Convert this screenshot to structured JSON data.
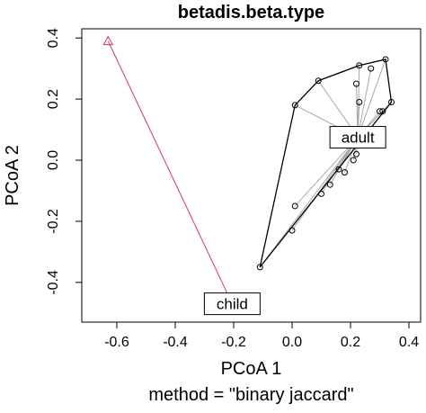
{
  "chart_data": {
    "type": "scatter",
    "title": "betadis.beta.type",
    "xlabel": "PCoA 1",
    "ylabel": "PCoA 2",
    "subtitle": "method = \"binary jaccard\"",
    "xlim": [
      -0.72,
      0.44
    ],
    "ylim": [
      -0.53,
      0.43
    ],
    "xticks": [
      -0.6,
      -0.4,
      -0.2,
      0.0,
      0.2,
      0.4
    ],
    "xtick_labels": [
      "-0.6",
      "-0.4",
      "-0.2",
      "0.0",
      "0.2",
      "0.4"
    ],
    "yticks": [
      -0.4,
      -0.2,
      0.0,
      0.2,
      0.4
    ],
    "ytick_labels": [
      "-0.4",
      "-0.2",
      "0.0",
      "0.2",
      "0.4"
    ],
    "grid": false,
    "groups": [
      {
        "name": "adult",
        "color": "#000000",
        "marker": "circle",
        "centroid": [
          0.225,
          0.075
        ],
        "points": [
          [
            -0.11,
            -0.35
          ],
          [
            0.0,
            -0.23
          ],
          [
            0.01,
            -0.15
          ],
          [
            0.01,
            0.18
          ],
          [
            0.09,
            0.26
          ],
          [
            0.1,
            -0.11
          ],
          [
            0.13,
            -0.08
          ],
          [
            0.16,
            -0.03
          ],
          [
            0.18,
            -0.04
          ],
          [
            0.21,
            0.0
          ],
          [
            0.22,
            0.02
          ],
          [
            0.22,
            0.25
          ],
          [
            0.23,
            0.31
          ],
          [
            0.23,
            0.19
          ],
          [
            0.27,
            0.3
          ],
          [
            0.3,
            0.16
          ],
          [
            0.31,
            0.16
          ],
          [
            0.32,
            0.33
          ],
          [
            0.34,
            0.19
          ]
        ],
        "hull_order": [
          [
            -0.11,
            -0.35
          ],
          [
            0.34,
            0.19
          ],
          [
            0.32,
            0.33
          ],
          [
            0.23,
            0.31
          ],
          [
            0.09,
            0.26
          ],
          [
            0.01,
            0.18
          ]
        ]
      },
      {
        "name": "child",
        "color": "#d6336c",
        "marker": "triangle",
        "centroid": [
          -0.205,
          -0.47
        ],
        "points": [
          [
            -0.63,
            0.39
          ]
        ]
      }
    ]
  }
}
